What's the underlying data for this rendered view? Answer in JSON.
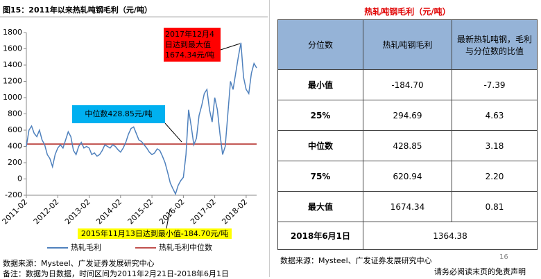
{
  "header": {
    "figure_title": "图15：2011年以来热轧吨钢毛利（元/吨）"
  },
  "chart_data": {
    "type": "line",
    "categories": [
      "2011-02",
      null,
      null,
      null,
      null,
      null,
      null,
      null,
      null,
      null,
      null,
      null,
      "2012-02",
      null,
      null,
      null,
      null,
      null,
      null,
      null,
      null,
      null,
      null,
      null,
      "2013-02",
      null,
      null,
      null,
      null,
      null,
      null,
      null,
      null,
      null,
      null,
      null,
      "2014-02",
      null,
      null,
      null,
      null,
      null,
      null,
      null,
      null,
      null,
      null,
      null,
      "2015-02",
      null,
      null,
      null,
      null,
      null,
      null,
      null,
      null,
      null,
      null,
      null,
      "2016-02",
      null,
      null,
      null,
      null,
      null,
      null,
      null,
      null,
      null,
      null,
      null,
      "2017-02",
      null,
      null,
      null,
      null,
      null,
      null,
      null,
      null,
      null,
      null,
      null,
      "2018-02",
      null,
      null,
      null,
      null
    ],
    "series": [
      {
        "name": "热轧毛利",
        "color": "#4f81bd",
        "values": [
          400,
          600,
          650,
          560,
          520,
          600,
          480,
          420,
          300,
          250,
          150,
          300,
          380,
          420,
          380,
          480,
          580,
          520,
          350,
          300,
          400,
          450,
          380,
          400,
          380,
          300,
          320,
          280,
          300,
          350,
          420,
          400,
          380,
          420,
          400,
          360,
          330,
          380,
          450,
          550,
          620,
          640,
          560,
          480,
          460,
          420,
          380,
          330,
          300,
          320,
          370,
          350,
          280,
          200,
          80,
          -50,
          -120,
          -184.7,
          -80,
          -20,
          20,
          300,
          850,
          650,
          420,
          500,
          780,
          900,
          1050,
          1100,
          850,
          700,
          1000,
          850,
          550,
          300,
          400,
          800,
          1200,
          1100,
          1300,
          1500,
          1674.34,
          1250,
          1100,
          1050,
          1300,
          1420,
          1364.38
        ]
      }
    ],
    "reference_lines": [
      {
        "name": "热轧毛利中位数",
        "color": "#c0504d",
        "value": 428.85
      }
    ],
    "ylim": [
      -200,
      1800
    ],
    "yticks": [
      -200,
      0,
      200,
      400,
      600,
      800,
      1000,
      1200,
      1400,
      1600,
      1800
    ],
    "annotations": [
      "2017年12月4日达到最大值1674.34元/吨",
      "中位数428.85元/吨",
      "2015年11月13日达到最小值-184.70元/吨"
    ]
  },
  "table": {
    "title": "热轧吨钢毛利（元/吨）",
    "header": [
      "分位数",
      "热轧吨钢毛利",
      "最新热轧吨钢，毛利与分位数的比值"
    ],
    "rows": [
      [
        "最小值",
        "-184.70",
        "-7.39"
      ],
      [
        "25%",
        "294.69",
        "4.63"
      ],
      [
        "中位数",
        "428.85",
        "3.18"
      ],
      [
        "75%",
        "620.94",
        "2.20"
      ],
      [
        "最大值",
        "1674.34",
        "0.81"
      ]
    ],
    "latest": [
      "2018年6月1日",
      "1364.38"
    ]
  },
  "footer": {
    "left_source": "数据来源：Mysteel、广发证券发展研究中心",
    "note": "备注：数据为日数据，时间区间为2011年2月21日-2018年6月1日",
    "right_source": "数据来源：Mysteel、广发证券发展研究中心",
    "page": "16",
    "disclaimer": "请务必阅读末页的免责声明"
  }
}
